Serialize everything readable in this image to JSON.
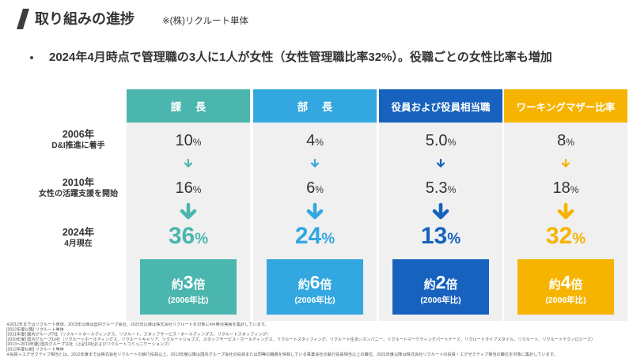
{
  "header": {
    "title": "取り組みの進捗",
    "note": "※(株)リクルート単体"
  },
  "summary": "2024年4月時点で管理職の3人に1人が女性（女性管理職比率32%）。役職ごとの女性比率も増加",
  "chart_data": {
    "type": "table",
    "unit": "%",
    "rows": [
      {
        "year": "2006年",
        "label": "D&I推進に着手"
      },
      {
        "year": "2010年",
        "label": "女性の活躍支援を開始"
      },
      {
        "year": "2024年",
        "label": "4月現在"
      }
    ],
    "series": [
      {
        "name": "課　長",
        "color": "#4bb6ae",
        "values": [
          "10",
          "16",
          "36"
        ],
        "growth": {
          "prefix": "約",
          "value": "3",
          "suffix": "倍",
          "basis": "(2006年比)"
        }
      },
      {
        "name": "部　長",
        "color": "#33a7e0",
        "values": [
          "4",
          "6",
          "24"
        ],
        "growth": {
          "prefix": "約",
          "value": "6",
          "suffix": "倍",
          "basis": "(2006年比)"
        }
      },
      {
        "name": "役員および役員相当職",
        "color": "#1762be",
        "values": [
          "5.0",
          "5.3",
          "13"
        ],
        "growth": {
          "prefix": "約",
          "value": "2",
          "suffix": "倍",
          "basis": "(2006年比)"
        }
      },
      {
        "name": "ワーキングマザー比率",
        "color": "#f6b400",
        "values": [
          "8",
          "18",
          "32"
        ],
        "growth": {
          "prefix": "約",
          "value": "4",
          "suffix": "倍",
          "basis": "(2006年比)"
        }
      }
    ]
  },
  "footnotes": [
    "※2012年まではリクルート単体、2013年以降は国内グループ会社、2022年以降は株式会社リクルートを対象に4月時点実績を集計しています。",
    "[2022年度以降] リクルート単体",
    "[2021年度] 国内グループ7社（リクルートホールディングス、リクルート、スタッフサービス・ホールディングス、リクルートスタッフィング）",
    "[2020年度] 国内グループ10社（リクルートホールディングス、リクルートキャリア、リクルートジョブズ、スタッフサービス・ホールディングス、リクルートスタッフィング、リクルート住まいカンパニー、リクルートマーケティングパートナーズ、リクルートライフスタイル、リクルート、リクルートテクノロジーズ）",
    "[2013〜2019年度] 国内グループ11社（上記10社およびリクルートコミュニケーションズ）",
    "[2012年度以前] リクルート単体",
    "※役員＋エグゼクティブ相当とは、2012年度までは株式会社リクルートの執行役員以上、2013年度以降は国内グループ会社の役員または同等の職責を保有している事業会社の執行役員相当以上の職位、2022年度以降は株式会社リクルートの役員・エグゼクティブ相当の職位を対象に集計しています。"
  ]
}
